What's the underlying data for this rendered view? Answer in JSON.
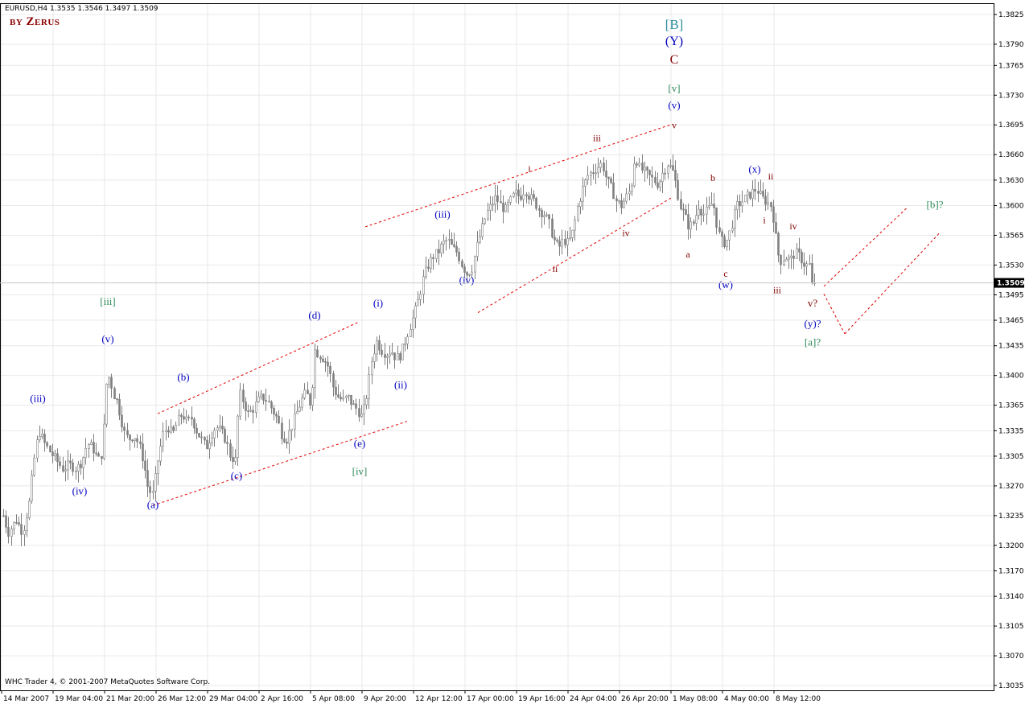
{
  "header": {
    "symbol_line": "EURUSD,H4  1.3535 1.3546 1.3497 1.3509",
    "author": "by Zerus",
    "copyright": "WHC Trader 4, © 2001-2007 MetaQuotes Software Corp."
  },
  "colors": {
    "candle": "#7f7f7f",
    "grid": "#e8e8e8",
    "trend_line": "#e00000",
    "wave_blue": "#0000c0",
    "wave_red": "#800000",
    "wave_green": "#2e8b57",
    "wave_teal": "#2f8f9f",
    "current_price_bg": "#000000"
  },
  "chart_data": {
    "type": "candlestick",
    "timeframe": "H4",
    "symbol": "EURUSD",
    "current_price": "1.3509",
    "ohlc_last": {
      "open": 1.3535,
      "high": 1.3546,
      "low": 1.3497,
      "close": 1.3509
    },
    "ylim": [
      1.3035,
      1.3825
    ],
    "y_ticks": [
      "1.3825",
      "1.3790",
      "1.3765",
      "1.3730",
      "1.3695",
      "1.3660",
      "1.3630",
      "1.3600",
      "1.3565",
      "1.3530",
      "1.3495",
      "1.3465",
      "1.3435",
      "1.3400",
      "1.3365",
      "1.3335",
      "1.3305",
      "1.3270",
      "1.3235",
      "1.3200",
      "1.3170",
      "1.3140",
      "1.3105",
      "1.3070",
      "1.3035"
    ],
    "x_ticks": [
      "14 Mar 2007",
      "19 Mar 04:00",
      "21 Mar 20:00",
      "26 Mar 12:00",
      "29 Mar 04:00",
      "2 Apr 16:00",
      "5 Apr 08:00",
      "9 Apr 20:00",
      "12 Apr 12:00",
      "17 Apr 00:00",
      "19 Apr 16:00",
      "24 Apr 04:00",
      "26 Apr 20:00",
      "1 May 08:00",
      "4 May 00:00",
      "8 May 12:00"
    ],
    "price_path": [
      [
        0,
        1.3205
      ],
      [
        4,
        1.3235
      ],
      [
        10,
        1.3215
      ],
      [
        20,
        1.323
      ],
      [
        28,
        1.3215
      ],
      [
        36,
        1.325
      ],
      [
        42,
        1.33
      ],
      [
        48,
        1.3335
      ],
      [
        55,
        1.332
      ],
      [
        62,
        1.331
      ],
      [
        70,
        1.33
      ],
      [
        78,
        1.329
      ],
      [
        86,
        1.3295
      ],
      [
        95,
        1.329
      ],
      [
        102,
        1.33
      ],
      [
        108,
        1.332
      ],
      [
        115,
        1.3315
      ],
      [
        122,
        1.33
      ],
      [
        127,
        1.331
      ],
      [
        132,
        1.339
      ],
      [
        136,
        1.34
      ],
      [
        140,
        1.338
      ],
      [
        145,
        1.337
      ],
      [
        150,
        1.335
      ],
      [
        155,
        1.333
      ],
      [
        160,
        1.3325
      ],
      [
        166,
        1.333
      ],
      [
        172,
        1.332
      ],
      [
        178,
        1.33
      ],
      [
        184,
        1.3265
      ],
      [
        190,
        1.326
      ],
      [
        196,
        1.33
      ],
      [
        202,
        1.333
      ],
      [
        208,
        1.334
      ],
      [
        214,
        1.333
      ],
      [
        220,
        1.3345
      ],
      [
        226,
        1.3355
      ],
      [
        232,
        1.3345
      ],
      [
        238,
        1.335
      ],
      [
        244,
        1.3335
      ],
      [
        250,
        1.3325
      ],
      [
        256,
        1.3315
      ],
      [
        262,
        1.333
      ],
      [
        268,
        1.334
      ],
      [
        274,
        1.3335
      ],
      [
        280,
        1.3325
      ],
      [
        286,
        1.3305
      ],
      [
        292,
        1.33
      ],
      [
        297,
        1.338
      ],
      [
        302,
        1.337
      ],
      [
        308,
        1.3355
      ],
      [
        314,
        1.336
      ],
      [
        320,
        1.337
      ],
      [
        326,
        1.3375
      ],
      [
        332,
        1.337
      ],
      [
        338,
        1.336
      ],
      [
        344,
        1.335
      ],
      [
        350,
        1.333
      ],
      [
        356,
        1.3325
      ],
      [
        362,
        1.334
      ],
      [
        368,
        1.3355
      ],
      [
        374,
        1.337
      ],
      [
        380,
        1.338
      ],
      [
        386,
        1.3365
      ],
      [
        391,
        1.343
      ],
      [
        396,
        1.3425
      ],
      [
        402,
        1.342
      ],
      [
        408,
        1.341
      ],
      [
        414,
        1.3385
      ],
      [
        420,
        1.3375
      ],
      [
        426,
        1.337
      ],
      [
        432,
        1.3375
      ],
      [
        438,
        1.3365
      ],
      [
        444,
        1.336
      ],
      [
        450,
        1.335
      ],
      [
        456,
        1.338
      ],
      [
        462,
        1.342
      ],
      [
        468,
        1.344
      ],
      [
        474,
        1.343
      ],
      [
        480,
        1.3425
      ],
      [
        486,
        1.343
      ],
      [
        492,
        1.342
      ],
      [
        498,
        1.3425
      ],
      [
        503,
        1.344
      ],
      [
        508,
        1.3455
      ],
      [
        514,
        1.347
      ],
      [
        520,
        1.349
      ],
      [
        526,
        1.3515
      ],
      [
        532,
        1.353
      ],
      [
        538,
        1.354
      ],
      [
        544,
        1.3545
      ],
      [
        550,
        1.3555
      ],
      [
        556,
        1.356
      ],
      [
        562,
        1.355
      ],
      [
        568,
        1.3545
      ],
      [
        574,
        1.353
      ],
      [
        580,
        1.352
      ],
      [
        586,
        1.3525
      ],
      [
        592,
        1.355
      ],
      [
        598,
        1.357
      ],
      [
        604,
        1.359
      ],
      [
        610,
        1.36
      ],
      [
        616,
        1.361
      ],
      [
        622,
        1.36
      ],
      [
        628,
        1.3595
      ],
      [
        634,
        1.3605
      ],
      [
        640,
        1.3615
      ],
      [
        646,
        1.361
      ],
      [
        652,
        1.362
      ],
      [
        658,
        1.361
      ],
      [
        664,
        1.3605
      ],
      [
        670,
        1.3595
      ],
      [
        676,
        1.359
      ],
      [
        682,
        1.358
      ],
      [
        688,
        1.356
      ],
      [
        694,
        1.355
      ],
      [
        700,
        1.356
      ],
      [
        706,
        1.3555
      ],
      [
        712,
        1.357
      ],
      [
        718,
        1.36
      ],
      [
        724,
        1.362
      ],
      [
        730,
        1.3635
      ],
      [
        736,
        1.364
      ],
      [
        742,
        1.3645
      ],
      [
        748,
        1.365
      ],
      [
        754,
        1.363
      ],
      [
        760,
        1.362
      ],
      [
        766,
        1.3605
      ],
      [
        772,
        1.36
      ],
      [
        778,
        1.361
      ],
      [
        784,
        1.362
      ],
      [
        789,
        1.366
      ],
      [
        794,
        1.3645
      ],
      [
        800,
        1.364
      ],
      [
        806,
        1.3635
      ],
      [
        812,
        1.363
      ],
      [
        818,
        1.3625
      ],
      [
        824,
        1.364
      ],
      [
        830,
        1.365
      ],
      [
        836,
        1.364
      ],
      [
        840,
        1.3625
      ],
      [
        845,
        1.36
      ],
      [
        850,
        1.359
      ],
      [
        856,
        1.3575
      ],
      [
        862,
        1.358
      ],
      [
        868,
        1.36
      ],
      [
        874,
        1.359
      ],
      [
        880,
        1.3595
      ],
      [
        886,
        1.3605
      ],
      [
        892,
        1.357
      ],
      [
        898,
        1.3555
      ],
      [
        904,
        1.356
      ],
      [
        910,
        1.358
      ],
      [
        916,
        1.36
      ],
      [
        922,
        1.3605
      ],
      [
        928,
        1.361
      ],
      [
        934,
        1.3615
      ],
      [
        940,
        1.362
      ],
      [
        946,
        1.361
      ],
      [
        952,
        1.3605
      ],
      [
        958,
        1.36
      ],
      [
        962,
        1.358
      ],
      [
        966,
        1.3545
      ],
      [
        970,
        1.3535
      ],
      [
        976,
        1.354
      ],
      [
        982,
        1.3535
      ],
      [
        988,
        1.3545
      ],
      [
        994,
        1.354
      ],
      [
        1000,
        1.353
      ],
      [
        1006,
        1.353
      ],
      [
        1012,
        1.3509
      ]
    ],
    "trend_lines": [
      {
        "from": [
          196,
          1.3355
        ],
        "to": [
          446,
          1.3463
        ]
      },
      {
        "from": [
          190,
          1.3247
        ],
        "to": [
          506,
          1.3346
        ]
      },
      {
        "from": [
          454,
          1.3575
        ],
        "to": [
          836,
          1.3696
        ]
      },
      {
        "from": [
          594,
          1.3474
        ],
        "to": [
          836,
          1.361
        ]
      },
      {
        "from": [
          1024,
          1.3505
        ],
        "to": [
          1128,
          1.3598
        ]
      },
      {
        "from": [
          1024,
          1.3496
        ],
        "to": [
          1050,
          1.3449
        ]
      },
      {
        "from": [
          1050,
          1.3449
        ],
        "to": [
          1168,
          1.3568
        ]
      }
    ],
    "annotations": [
      {
        "text": "(iii)",
        "x": 47,
        "y": 1.3369,
        "color": "blue",
        "size": 13
      },
      {
        "text": "(iv)",
        "x": 99,
        "y": 1.326,
        "color": "blue",
        "size": 13
      },
      {
        "text": "[iii]",
        "x": 134,
        "y": 1.3483,
        "color": "green",
        "size": 13
      },
      {
        "text": "(v)",
        "x": 134,
        "y": 1.3439,
        "color": "blue",
        "size": 13
      },
      {
        "text": "(a)",
        "x": 190,
        "y": 1.3244,
        "color": "blue",
        "size": 13
      },
      {
        "text": "(b)",
        "x": 228,
        "y": 1.3394,
        "color": "blue",
        "size": 13
      },
      {
        "text": "(c)",
        "x": 294,
        "y": 1.3278,
        "color": "blue",
        "size": 13
      },
      {
        "text": "(d)",
        "x": 391,
        "y": 1.3467,
        "color": "blue",
        "size": 13
      },
      {
        "text": "(e)",
        "x": 447,
        "y": 1.3316,
        "color": "blue",
        "size": 13
      },
      {
        "text": "[iv]",
        "x": 447,
        "y": 1.3283,
        "color": "green",
        "size": 13
      },
      {
        "text": "(i)",
        "x": 470,
        "y": 1.3481,
        "color": "blue",
        "size": 13
      },
      {
        "text": "(ii)",
        "x": 498,
        "y": 1.3385,
        "color": "blue",
        "size": 13
      },
      {
        "text": "(iii)",
        "x": 550,
        "y": 1.3586,
        "color": "blue",
        "size": 13
      },
      {
        "text": "(iv)",
        "x": 580,
        "y": 1.3508,
        "color": "blue",
        "size": 13
      },
      {
        "text": "i",
        "x": 658,
        "y": 1.364,
        "color": "red",
        "size": 12
      },
      {
        "text": "ii",
        "x": 690,
        "y": 1.3522,
        "color": "red",
        "size": 12
      },
      {
        "text": "iii",
        "x": 742,
        "y": 1.3676,
        "color": "red",
        "size": 12
      },
      {
        "text": "iv",
        "x": 778,
        "y": 1.3564,
        "color": "red",
        "size": 12
      },
      {
        "text": "v",
        "x": 838,
        "y": 1.3691,
        "color": "red",
        "size": 12
      },
      {
        "text": "(v)",
        "x": 838,
        "y": 1.3714,
        "color": "blue",
        "size": 13
      },
      {
        "text": "[v]",
        "x": 838,
        "y": 1.3734,
        "color": "green",
        "size": 13
      },
      {
        "text": "C",
        "x": 838,
        "y": 1.3767,
        "color": "red",
        "size": 16
      },
      {
        "text": "(Y)",
        "x": 838,
        "y": 1.3789,
        "color": "blue",
        "size": 16
      },
      {
        "text": "[B]",
        "x": 838,
        "y": 1.3808,
        "color": "teal",
        "size": 17
      },
      {
        "text": "a",
        "x": 855,
        "y": 1.3539,
        "color": "red",
        "size": 12
      },
      {
        "text": "b",
        "x": 886,
        "y": 1.3629,
        "color": "red",
        "size": 12
      },
      {
        "text": "c",
        "x": 902,
        "y": 1.3516,
        "color": "red",
        "size": 12
      },
      {
        "text": "(w)",
        "x": 902,
        "y": 1.3503,
        "color": "blue",
        "size": 13
      },
      {
        "text": "(x)",
        "x": 938,
        "y": 1.3639,
        "color": "blue",
        "size": 13
      },
      {
        "text": "ii",
        "x": 958,
        "y": 1.3631,
        "color": "red",
        "size": 12
      },
      {
        "text": "i",
        "x": 950,
        "y": 1.3579,
        "color": "red",
        "size": 12
      },
      {
        "text": "iv",
        "x": 986,
        "y": 1.3572,
        "color": "red",
        "size": 12
      },
      {
        "text": "iii",
        "x": 966,
        "y": 1.3497,
        "color": "red",
        "size": 12
      },
      {
        "text": "v?",
        "x": 1010,
        "y": 1.3481,
        "color": "red",
        "size": 13
      },
      {
        "text": "(y)?",
        "x": 1010,
        "y": 1.3457,
        "color": "blue",
        "size": 13
      },
      {
        "text": "[a]?",
        "x": 1010,
        "y": 1.3435,
        "color": "green",
        "size": 13
      },
      {
        "text": "[b]?",
        "x": 1162,
        "y": 1.3597,
        "color": "green",
        "size": 13
      }
    ],
    "grid": true,
    "legend": "none"
  }
}
